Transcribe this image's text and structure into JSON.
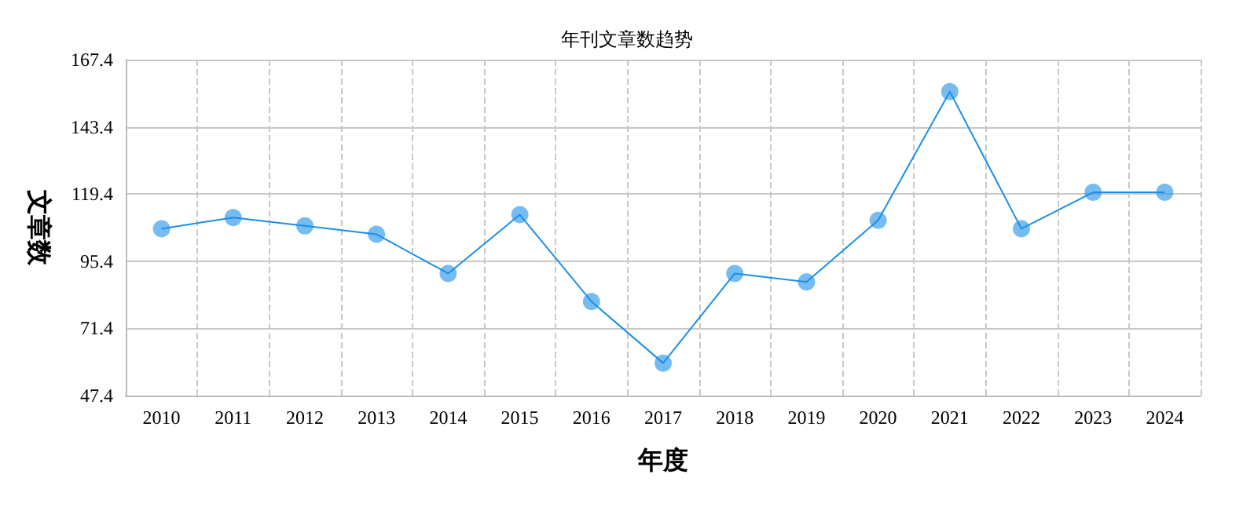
{
  "chart_data": {
    "type": "line",
    "title": "年刊文章数趋势",
    "xlabel": "年度",
    "ylabel": "文章数",
    "categories": [
      "2010",
      "2011",
      "2012",
      "2013",
      "2014",
      "2015",
      "2016",
      "2017",
      "2018",
      "2019",
      "2020",
      "2021",
      "2022",
      "2023",
      "2024"
    ],
    "series": [
      {
        "color": "#1a8fe8",
        "values": [
          107,
          111,
          108,
          105,
          91,
          112,
          81,
          59,
          91,
          88,
          110,
          156,
          107,
          120,
          120
        ]
      }
    ],
    "ylim": [
      47.4,
      167.4
    ],
    "yticks": [
      47.4,
      71.4,
      95.4,
      119.4,
      143.4,
      167.4
    ],
    "grid": true,
    "marker": "circle",
    "line_style": "solid"
  }
}
